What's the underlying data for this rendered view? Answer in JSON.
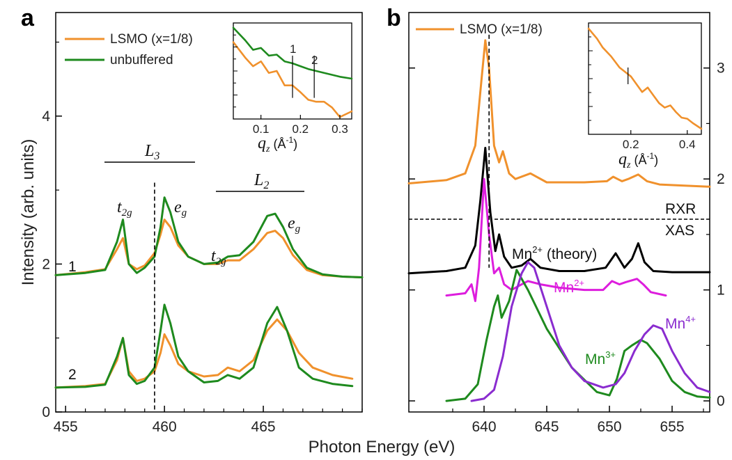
{
  "figure": {
    "xlabel": "Photon Energy (eV)",
    "ylabel": "Intensity (arb. units)"
  },
  "colors": {
    "lsmo": "#f0912c",
    "unbuffered": "#1e8a1e",
    "theory": "#000000",
    "mn2": "#dd1ddd",
    "mn3": "#1e8a1e",
    "mn4": "#8a2ccf"
  },
  "chart_data": [
    {
      "panel": "a",
      "type": "line",
      "xlim": [
        454.5,
        470
      ],
      "ylim": [
        0,
        5.4
      ],
      "xticks": [
        455,
        460,
        465
      ],
      "yticks": [
        0,
        2,
        4
      ],
      "legend": {
        "placement": "top-left",
        "entries": [
          "LSMO (x=1/8)",
          "unbuffered"
        ]
      },
      "curve_labels": [
        "1",
        "2"
      ],
      "edge_labels": [
        "L",
        "3",
        "L",
        "2"
      ],
      "peak_labels": [
        "t",
        "2g",
        "e",
        "g",
        "t",
        "2g",
        "e",
        "g"
      ],
      "vline_x": 459.5,
      "series": [
        {
          "name": "LSMO (x=1/8)",
          "color": "orange",
          "x": [
            454.5,
            456,
            457,
            457.6,
            457.9,
            458.2,
            458.6,
            459,
            459.5,
            459.8,
            460,
            460.3,
            460.7,
            461.2,
            462,
            462.7,
            463.2,
            463.8,
            464.5,
            465.2,
            465.6,
            466,
            466.5,
            467.2,
            468,
            469,
            470
          ],
          "y": [
            1.85,
            1.89,
            1.93,
            2.2,
            2.35,
            2.0,
            1.93,
            1.98,
            2.15,
            2.4,
            2.6,
            2.5,
            2.25,
            2.1,
            2.0,
            2.0,
            2.05,
            2.05,
            2.2,
            2.42,
            2.45,
            2.35,
            2.12,
            1.92,
            1.85,
            1.83,
            1.82
          ]
        },
        {
          "name": "unbuffered",
          "color": "green",
          "x": [
            454.5,
            456,
            457,
            457.6,
            457.9,
            458.2,
            458.6,
            459,
            459.5,
            459.8,
            460,
            460.3,
            460.7,
            461.2,
            462,
            462.7,
            463.2,
            463.8,
            464.5,
            465.2,
            465.6,
            466,
            466.5,
            467.2,
            468,
            469,
            470
          ],
          "y": [
            1.85,
            1.88,
            1.92,
            2.3,
            2.6,
            2.0,
            1.88,
            1.95,
            2.1,
            2.5,
            2.9,
            2.7,
            2.3,
            2.1,
            2.0,
            2.02,
            2.1,
            2.12,
            2.3,
            2.65,
            2.68,
            2.5,
            2.2,
            1.95,
            1.86,
            1.83,
            1.82
          ]
        },
        {
          "name": "LSMO (x=1/8)",
          "color": "orange",
          "x": [
            454.5,
            456,
            457,
            457.6,
            457.9,
            458.2,
            458.6,
            459,
            459.5,
            459.8,
            460,
            460.3,
            460.7,
            461.2,
            462,
            462.7,
            463.2,
            463.8,
            464.5,
            465.2,
            465.7,
            466.2,
            466.8,
            467.5,
            468.5,
            469.5
          ],
          "y": [
            0.33,
            0.35,
            0.38,
            0.7,
            1.0,
            0.55,
            0.42,
            0.45,
            0.55,
            0.8,
            1.05,
            0.9,
            0.65,
            0.55,
            0.48,
            0.5,
            0.6,
            0.55,
            0.7,
            1.1,
            1.25,
            1.1,
            0.8,
            0.6,
            0.5,
            0.45
          ]
        },
        {
          "name": "unbuffered",
          "color": "green",
          "x": [
            454.5,
            456,
            457,
            457.6,
            457.9,
            458.2,
            458.6,
            459,
            459.5,
            459.8,
            460,
            460.3,
            460.7,
            461.2,
            462,
            462.7,
            463.2,
            463.8,
            464.5,
            465.2,
            465.7,
            466.2,
            466.8,
            467.5,
            468.5,
            469.5
          ],
          "y": [
            0.33,
            0.34,
            0.37,
            0.75,
            1.0,
            0.5,
            0.38,
            0.42,
            0.6,
            1.1,
            1.45,
            1.2,
            0.75,
            0.55,
            0.4,
            0.42,
            0.5,
            0.45,
            0.6,
            1.2,
            1.42,
            1.1,
            0.6,
            0.45,
            0.38,
            0.35
          ]
        }
      ],
      "inset": {
        "xlabel_var": "q",
        "xlabel_sub": "z",
        "xlabel_unit_prefix": "(Å",
        "xlabel_unit_exp": "-1",
        "xlabel_unit_suffix": ")",
        "xlim": [
          0.03,
          0.33
        ],
        "xticks": [
          0.1,
          0.2,
          0.3
        ],
        "marker_labels": [
          "1",
          "2"
        ],
        "markers_x": [
          0.18,
          0.235
        ],
        "series": [
          {
            "name": "unbuffered",
            "color": "green",
            "x": [
              0.03,
              0.06,
              0.08,
              0.1,
              0.12,
              0.14,
              0.16,
              0.18,
              0.2,
              0.22,
              0.24,
              0.26,
              0.28,
              0.3,
              0.33
            ],
            "y": [
              0.95,
              0.82,
              0.72,
              0.74,
              0.66,
              0.67,
              0.6,
              0.58,
              0.55,
              0.52,
              0.5,
              0.48,
              0.46,
              0.44,
              0.42
            ]
          },
          {
            "name": "LSMO (x=1/8)",
            "color": "orange",
            "x": [
              0.03,
              0.06,
              0.08,
              0.1,
              0.12,
              0.14,
              0.16,
              0.18,
              0.2,
              0.22,
              0.24,
              0.26,
              0.28,
              0.3,
              0.33
            ],
            "y": [
              0.8,
              0.64,
              0.55,
              0.6,
              0.48,
              0.5,
              0.35,
              0.35,
              0.28,
              0.2,
              0.18,
              0.18,
              0.12,
              0.02,
              0.08
            ]
          }
        ]
      }
    },
    {
      "panel": "b",
      "type": "line",
      "xlim": [
        634,
        658
      ],
      "ylim": [
        -0.1,
        3.5
      ],
      "xticks": [
        640,
        645,
        650,
        655
      ],
      "yticks_right": [
        0,
        1,
        2,
        3
      ],
      "legend": {
        "placement": "top-left",
        "entries": [
          "LSMO (x=1/8)"
        ]
      },
      "divider_labels": [
        "RXR",
        "XAS"
      ],
      "divider_y": 1.62,
      "vline_x": 640.4,
      "labels": {
        "theory": "Mn",
        "theory_sup": "2+",
        "theory_suffix": "(theory)",
        "mn2": "Mn",
        "mn2_sup": "2+",
        "mn3": "Mn",
        "mn3_sup": "3+",
        "mn4": "Mn",
        "mn4_sup": "4+"
      },
      "series": [
        {
          "name": "LSMO (x=1/8)",
          "color": "orange",
          "x": [
            634,
            637,
            638.5,
            639.3,
            639.8,
            640.1,
            640.4,
            640.8,
            641.2,
            641.5,
            642,
            642.5,
            643.7,
            645,
            648,
            649.8,
            650.3,
            651,
            651.5,
            652.3,
            653,
            654,
            656,
            658
          ],
          "y": [
            1.96,
            1.99,
            2.05,
            2.3,
            2.9,
            3.25,
            3.0,
            2.3,
            2.15,
            2.25,
            2.05,
            2.0,
            2.05,
            1.97,
            1.97,
            1.98,
            2.02,
            1.98,
            2.0,
            2.04,
            1.98,
            1.95,
            1.94,
            1.93
          ]
        },
        {
          "name": "Mn2+ (theory)",
          "color": "black",
          "x": [
            634,
            637,
            638.5,
            639.3,
            639.7,
            640.1,
            640.5,
            640.9,
            641.2,
            641.6,
            642.2,
            643,
            643.7,
            644.5,
            646,
            648,
            649.7,
            650.5,
            651.2,
            651.8,
            652.3,
            652.8,
            653.5,
            655,
            658
          ],
          "y": [
            1.15,
            1.17,
            1.2,
            1.4,
            1.8,
            2.28,
            1.7,
            1.35,
            1.5,
            1.3,
            1.2,
            1.22,
            1.28,
            1.2,
            1.17,
            1.17,
            1.2,
            1.33,
            1.2,
            1.28,
            1.42,
            1.25,
            1.17,
            1.16,
            1.16
          ]
        },
        {
          "name": "Mn2+",
          "color": "magenta",
          "x": [
            637,
            638.5,
            639,
            639.3,
            639.6,
            640,
            640.4,
            640.8,
            641.2,
            641.6,
            642.2,
            643,
            643.5,
            644.5,
            646,
            648,
            649.5,
            650.2,
            650.8,
            651.3,
            652.2,
            652.7,
            653.3,
            654.5
          ],
          "y": [
            0.95,
            0.97,
            1.05,
            0.9,
            1.2,
            2.0,
            1.5,
            1.15,
            1.2,
            1.05,
            1.0,
            1.05,
            1.08,
            1.05,
            1.02,
            1.0,
            1.0,
            1.08,
            1.05,
            1.07,
            1.1,
            1.05,
            0.98,
            0.95
          ]
        },
        {
          "name": "Mn3+",
          "color": "green",
          "x": [
            637,
            638.5,
            639.5,
            640.2,
            640.8,
            641.1,
            641.4,
            642,
            642.6,
            643.5,
            645,
            647,
            649,
            650,
            650.6,
            651.2,
            651.8,
            652.5,
            653,
            654,
            655,
            656,
            657,
            658
          ],
          "y": [
            0.0,
            0.02,
            0.15,
            0.55,
            0.85,
            0.95,
            0.75,
            0.9,
            1.18,
            1.0,
            0.65,
            0.3,
            0.08,
            0.05,
            0.2,
            0.45,
            0.5,
            0.55,
            0.52,
            0.38,
            0.18,
            0.08,
            0.04,
            0.03
          ]
        },
        {
          "name": "Mn4+",
          "color": "purple",
          "x": [
            639,
            640,
            640.8,
            641.5,
            642.2,
            643,
            643.5,
            644,
            645,
            646,
            647,
            648,
            649.5,
            650.5,
            651.2,
            652,
            652.8,
            653.5,
            654.2,
            655,
            656,
            657,
            658
          ],
          "y": [
            0.0,
            0.02,
            0.1,
            0.4,
            0.85,
            1.15,
            1.25,
            1.2,
            0.85,
            0.5,
            0.3,
            0.18,
            0.12,
            0.15,
            0.25,
            0.45,
            0.6,
            0.68,
            0.65,
            0.45,
            0.25,
            0.12,
            0.08
          ]
        }
      ],
      "inset": {
        "xlabel_var": "q",
        "xlabel_sub": "z",
        "xlabel_unit_prefix": "(Å",
        "xlabel_unit_exp": "-1",
        "xlabel_unit_suffix": ")",
        "xlim": [
          0.05,
          0.45
        ],
        "xticks": [
          0.2,
          0.4
        ],
        "markers_x": [
          0.19
        ],
        "series": [
          {
            "name": "LSMO (x=1/8)",
            "color": "orange",
            "x": [
              0.05,
              0.08,
              0.1,
              0.13,
              0.16,
              0.18,
              0.2,
              0.22,
              0.24,
              0.26,
              0.28,
              0.3,
              0.32,
              0.34,
              0.36,
              0.38,
              0.4,
              0.42,
              0.45
            ],
            "y": [
              0.95,
              0.86,
              0.78,
              0.7,
              0.6,
              0.56,
              0.52,
              0.45,
              0.38,
              0.42,
              0.35,
              0.28,
              0.24,
              0.26,
              0.2,
              0.15,
              0.14,
              0.1,
              0.05
            ]
          }
        ]
      }
    }
  ]
}
